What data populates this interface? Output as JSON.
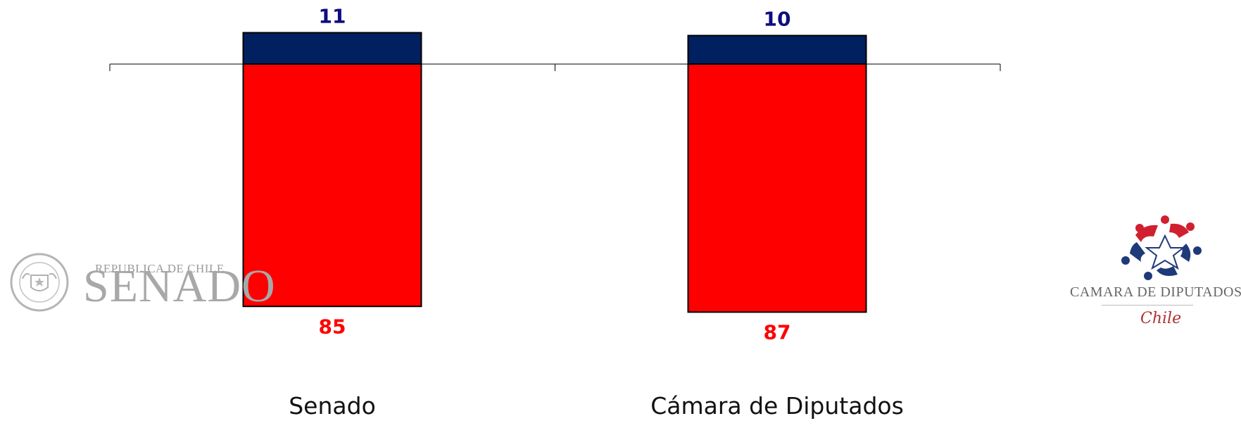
{
  "chart_data": {
    "type": "bar",
    "stacked": true,
    "categories": [
      "Senado",
      "Cámara de Diputados"
    ],
    "series": [
      {
        "values": [
          11,
          10
        ],
        "color": "#002060",
        "label_color": "#0d0d80",
        "position": "above baseline"
      },
      {
        "values": [
          85,
          87
        ],
        "color": "#ff0000",
        "label_color": "#ff0000",
        "position": "below baseline"
      }
    ],
    "value_labels_top": [
      "11",
      "10"
    ],
    "value_labels_bottom": [
      "85",
      "87"
    ],
    "title": "",
    "xlabel": "",
    "ylabel": "",
    "grid": false,
    "legend": "none"
  },
  "logos": {
    "senado": {
      "seal_text_top": "REPUBLICA DE CHILE",
      "seal_text_bottom": "SENADO",
      "small_text": "REPUBLICA DE CHILE",
      "big_text": "SENADO",
      "seal_color": "#b0b0b0"
    },
    "camara": {
      "name": "CAMARA DE DIPUTADOS",
      "country": "Chile",
      "red": "#d02030",
      "blue": "#1f3a7a"
    }
  }
}
